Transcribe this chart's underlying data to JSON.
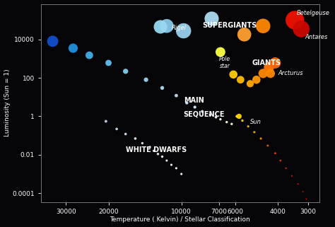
{
  "background_color": "#050508",
  "axis_color": "#777777",
  "text_color": "#ffffff",
  "xlabel": "Temperature ( Kelvin) / Stellar Classification",
  "ylabel": "Luminosity (Sun = 1)",
  "xticks": [
    30000,
    20000,
    10000,
    7000,
    6000,
    4000,
    3000
  ],
  "yticks": [
    10000,
    100,
    1,
    0.01,
    0.0001
  ],
  "ytick_labels": [
    "10000",
    "100",
    "1",
    "0.01",
    "0.0001"
  ],
  "main_sequence": [
    {
      "T": 34000,
      "L": 8000,
      "s": 130,
      "c": "#1050CC"
    },
    {
      "T": 28000,
      "L": 3500,
      "s": 90,
      "c": "#2090DD"
    },
    {
      "T": 24000,
      "L": 1500,
      "s": 60,
      "c": "#40B0E8"
    },
    {
      "T": 20000,
      "L": 600,
      "s": 40,
      "c": "#60C0EE"
    },
    {
      "T": 17000,
      "L": 220,
      "s": 28,
      "c": "#80CCEE"
    },
    {
      "T": 14000,
      "L": 80,
      "s": 20,
      "c": "#99D5F0"
    },
    {
      "T": 12000,
      "L": 30,
      "s": 15,
      "c": "#AADCF5"
    },
    {
      "T": 10500,
      "L": 12,
      "s": 12,
      "c": "#BBDDF5"
    },
    {
      "T": 9500,
      "L": 5,
      "s": 10,
      "c": "#CCEAFF"
    },
    {
      "T": 8800,
      "L": 3,
      "s": 9,
      "c": "#D5EEFF"
    },
    {
      "T": 8200,
      "L": 1.8,
      "s": 8,
      "c": "#E0F0FF"
    },
    {
      "T": 7600,
      "L": 1.2,
      "s": 7,
      "c": "#EEF5FF"
    },
    {
      "T": 7200,
      "L": 0.9,
      "s": 7,
      "c": "#F8F8FF"
    },
    {
      "T": 6900,
      "L": 0.7,
      "s": 6,
      "c": "#FFFFF0"
    },
    {
      "T": 6500,
      "L": 0.5,
      "s": 6,
      "c": "#FFFFE0"
    },
    {
      "T": 6200,
      "L": 0.4,
      "s": 6,
      "c": "#FFFFC8"
    },
    {
      "T": 5900,
      "L": 1.0,
      "s": 8,
      "c": "#FFE840"
    },
    {
      "T": 5600,
      "L": 0.6,
      "s": 6,
      "c": "#FFD700"
    },
    {
      "T": 5300,
      "L": 0.3,
      "s": 5,
      "c": "#FFBB00"
    },
    {
      "T": 5000,
      "L": 0.15,
      "s": 5,
      "c": "#FFA500"
    },
    {
      "T": 4700,
      "L": 0.07,
      "s": 5,
      "c": "#FF8800"
    },
    {
      "T": 4400,
      "L": 0.03,
      "s": 4,
      "c": "#FF6600"
    },
    {
      "T": 4100,
      "L": 0.012,
      "s": 4,
      "c": "#FF4400"
    },
    {
      "T": 3900,
      "L": 0.005,
      "s": 4,
      "c": "#EE3300"
    },
    {
      "T": 3700,
      "L": 0.002,
      "s": 3,
      "c": "#DD2200"
    },
    {
      "T": 3500,
      "L": 0.0008,
      "s": 3,
      "c": "#CC1100"
    },
    {
      "T": 3300,
      "L": 0.0003,
      "s": 3,
      "c": "#BB0800"
    },
    {
      "T": 3150,
      "L": 0.00012,
      "s": 3,
      "c": "#AA0500"
    },
    {
      "T": 3050,
      "L": 5e-05,
      "s": 3,
      "c": "#990000"
    }
  ],
  "white_dwarfs": [
    {
      "T": 20500,
      "L": 0.55,
      "s": 8,
      "c": "#C0D0E8"
    },
    {
      "T": 18500,
      "L": 0.22,
      "s": 7,
      "c": "#C8D8EE"
    },
    {
      "T": 17000,
      "L": 0.12,
      "s": 7,
      "c": "#D0DCF0"
    },
    {
      "T": 15500,
      "L": 0.07,
      "s": 7,
      "c": "#D8E4F4"
    },
    {
      "T": 14500,
      "L": 0.04,
      "s": 6,
      "c": "#DEEAF8"
    },
    {
      "T": 13500,
      "L": 0.025,
      "s": 6,
      "c": "#E4EEF8"
    },
    {
      "T": 13000,
      "L": 0.016,
      "s": 6,
      "c": "#E8F0FA"
    },
    {
      "T": 12500,
      "L": 0.011,
      "s": 6,
      "c": "#ECF4FC"
    },
    {
      "T": 12000,
      "L": 0.008,
      "s": 6,
      "c": "#F0F4FE"
    },
    {
      "T": 11500,
      "L": 0.005,
      "s": 5,
      "c": "#F4F6FF"
    },
    {
      "T": 11000,
      "L": 0.003,
      "s": 5,
      "c": "#F8FAFF"
    },
    {
      "T": 10500,
      "L": 0.002,
      "s": 5,
      "c": "#FBFCFF"
    },
    {
      "T": 10000,
      "L": 0.001,
      "s": 5,
      "c": "#FFFFFF"
    }
  ],
  "supergiants": [
    {
      "T": 11500,
      "L": 50000,
      "s": 200,
      "c": "#88C8E8"
    },
    {
      "T": 9800,
      "L": 28000,
      "s": 240,
      "c": "#99D0EC"
    },
    {
      "T": 7500,
      "L": 120000,
      "s": 210,
      "c": "#AADAF0"
    },
    {
      "T": 5500,
      "L": 18000,
      "s": 200,
      "c": "#FFA030"
    },
    {
      "T": 4600,
      "L": 50000,
      "s": 220,
      "c": "#FF8800"
    }
  ],
  "rigel": {
    "T": 12200,
    "L": 45000,
    "s": 190,
    "c": "#99D8F0"
  },
  "betelgeuse": {
    "T": 3400,
    "L": 100000,
    "s": 360,
    "c": "#EE1100"
  },
  "antares": {
    "T": 3200,
    "L": 35000,
    "s": 290,
    "c": "#CC0800"
  },
  "giants": [
    {
      "T": 6100,
      "L": 150,
      "s": 70,
      "c": "#FFCC00"
    },
    {
      "T": 5700,
      "L": 80,
      "s": 60,
      "c": "#FFBB00"
    },
    {
      "T": 5200,
      "L": 50,
      "s": 55,
      "c": "#FFAA00"
    },
    {
      "T": 4900,
      "L": 80,
      "s": 70,
      "c": "#FF9900"
    },
    {
      "T": 4600,
      "L": 170,
      "s": 90,
      "c": "#FF8800"
    },
    {
      "T": 4350,
      "L": 350,
      "s": 110,
      "c": "#FF7700"
    },
    {
      "T": 4100,
      "L": 600,
      "s": 130,
      "c": "#FF6500"
    }
  ],
  "arcturus": {
    "T": 4290,
    "L": 170,
    "s": 85,
    "c": "#FF8800"
  },
  "pole_star": {
    "T": 6900,
    "L": 2200,
    "s": 100,
    "c": "#FFFF44"
  },
  "sun": {
    "T": 5780,
    "L": 1.0,
    "s": 28,
    "c": "#FFD700"
  },
  "label_supergiants": {
    "T": 8200,
    "L": 55000,
    "text": "SUPERGIANTS"
  },
  "label_giants": {
    "T": 5100,
    "L": 600,
    "text": "GIANTS"
  },
  "label_main1": {
    "T": 9800,
    "L": 4.5,
    "text": "MAIN"
  },
  "label_main2": {
    "T": 9800,
    "L": 2.0,
    "text": "SEQUENCE"
  },
  "label_wd": {
    "T": 17000,
    "L": 0.018,
    "text": "WHITE DWARFS"
  }
}
